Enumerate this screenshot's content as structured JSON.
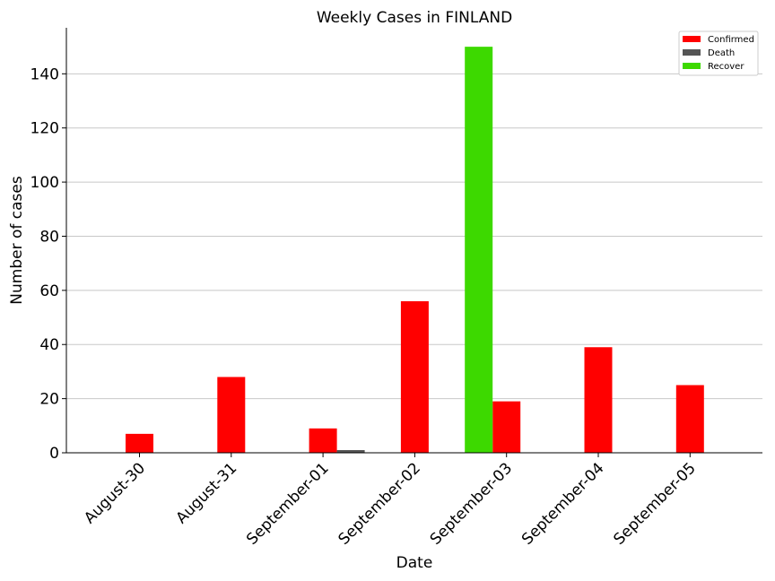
{
  "chart_data": {
    "type": "bar",
    "title": "Weekly Cases in FINLAND",
    "xlabel": "Date",
    "ylabel": "Number of cases",
    "categories": [
      "August-30",
      "August-31",
      "September-01",
      "September-02",
      "September-03",
      "September-04",
      "September-05"
    ],
    "series": [
      {
        "name": "Confirmed",
        "color": "#ff0000",
        "values": [
          7,
          28,
          9,
          56,
          19,
          39,
          25
        ]
      },
      {
        "name": "Death",
        "color": "#555555",
        "values": [
          0,
          0,
          1,
          0,
          0,
          0,
          0
        ]
      },
      {
        "name": "Recover",
        "color": "#3dd900",
        "values": [
          0,
          0,
          0,
          0,
          150,
          0,
          0
        ]
      }
    ],
    "ylim": [
      0,
      157
    ],
    "yticks": [
      0,
      20,
      40,
      60,
      80,
      100,
      120,
      140
    ],
    "grid": "horizontal",
    "legend_position": "top-right"
  }
}
